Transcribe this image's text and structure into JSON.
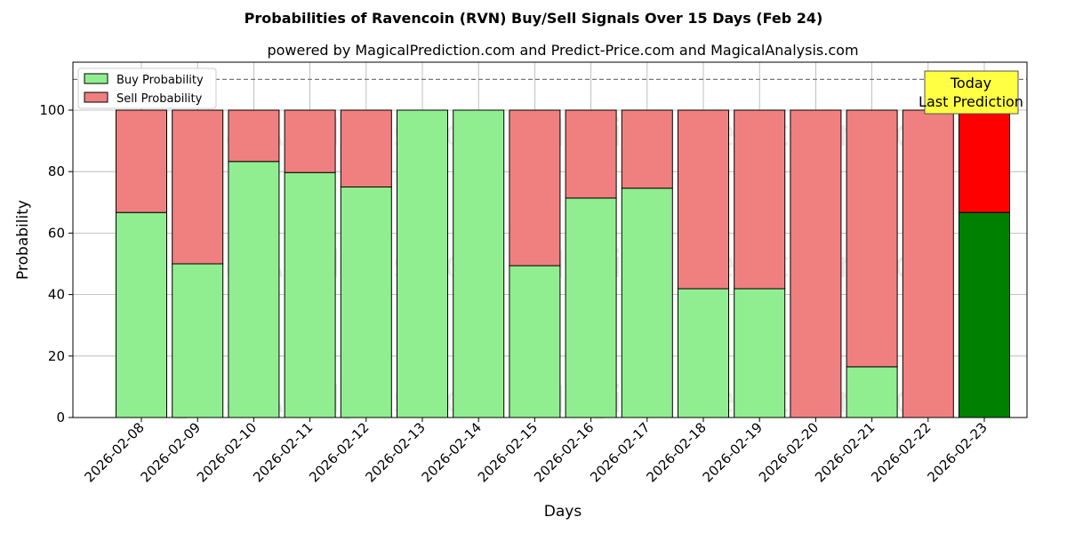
{
  "chart_data": {
    "type": "bar",
    "stacked": true,
    "title": "Probabilities of Ravencoin (RVN) Buy/Sell Signals Over 15 Days (Feb 24)",
    "subtitle": "powered by MagicalPrediction.com and Predict-Price.com and MagicalAnalysis.com",
    "xlabel": "Days",
    "ylabel": "Probability",
    "ylim": [
      0,
      115.6
    ],
    "yticks": [
      0,
      20,
      40,
      60,
      80,
      100
    ],
    "categories": [
      "2026-02-08",
      "2026-02-09",
      "2026-02-10",
      "2026-02-11",
      "2026-02-12",
      "2026-02-13",
      "2026-02-14",
      "2026-02-15",
      "2026-02-16",
      "2026-02-17",
      "2026-02-18",
      "2026-02-19",
      "2026-02-20",
      "2026-02-21",
      "2026-02-22",
      "2026-02-23"
    ],
    "series": [
      {
        "name": "Buy Probability",
        "color": "#90ee90",
        "values": [
          66.7,
          50,
          83.3,
          79.7,
          75,
          100,
          100,
          49.4,
          71.4,
          74.6,
          41.9,
          41.9,
          0,
          16.5,
          0,
          66.7
        ]
      },
      {
        "name": "Sell Probability",
        "color": "#f08080",
        "values": [
          33.3,
          50,
          16.7,
          20.3,
          25,
          0,
          0,
          50.6,
          28.6,
          25.4,
          58.1,
          58.1,
          100,
          83.5,
          100,
          33.3
        ]
      }
    ],
    "highlight_colors": {
      "buy": "#008000",
      "sell": "#ff0000"
    },
    "reference_line": 110,
    "annotation": [
      "Today",
      "Last Prediction"
    ],
    "legend_position": "top-left",
    "grid": true,
    "watermarks": [
      "MagicalAnalysis.com",
      "MagicalPrediction.com"
    ]
  }
}
